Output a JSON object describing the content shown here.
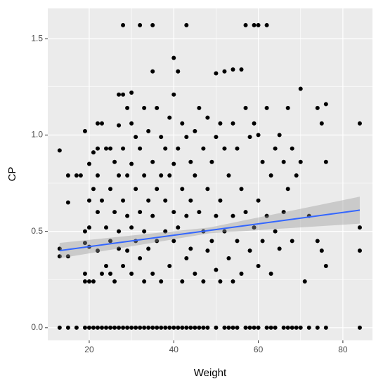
{
  "chart_data": {
    "type": "scatter",
    "xlabel": "Weight",
    "ylabel": "CP",
    "xlim": [
      10.2,
      87
    ],
    "ylim": [
      -0.066,
      1.657
    ],
    "xticks": [
      20,
      40,
      60,
      80
    ],
    "yticks": [
      {
        "value": 0,
        "label": "0.0"
      },
      {
        "value": 0.5,
        "label": "0.5"
      },
      {
        "value": 1,
        "label": "1.0"
      },
      {
        "value": 1.5,
        "label": "1.5"
      }
    ],
    "xminor": [
      30,
      50,
      70
    ],
    "yminor": [
      0.25,
      0.75,
      1.25
    ],
    "grid": true,
    "series": [
      {
        "color": "#000000",
        "x": [
          13,
          15,
          17,
          19,
          20,
          21,
          22,
          23,
          24,
          25,
          26,
          27,
          28,
          29,
          30,
          31,
          32,
          33,
          34,
          35,
          36,
          37,
          38,
          39,
          40,
          41,
          42,
          43,
          44,
          45,
          46,
          47,
          48,
          50,
          52,
          53,
          54,
          55,
          57,
          58,
          59,
          60,
          62,
          63,
          64,
          66,
          67,
          68,
          69,
          70,
          72,
          74,
          76,
          84,
          28,
          32,
          35,
          43,
          57,
          59,
          60,
          62,
          13,
          13,
          13,
          15,
          15,
          15,
          17,
          18,
          19,
          19,
          19,
          19,
          19,
          20,
          20,
          20,
          20,
          20,
          21,
          21,
          21,
          22,
          22,
          22,
          22,
          22,
          23,
          23,
          23,
          24,
          24,
          24,
          25,
          25,
          25,
          25,
          26,
          26,
          26,
          27,
          27,
          27,
          27,
          27,
          28,
          28,
          28,
          28,
          29,
          29,
          29,
          29,
          30,
          30,
          30,
          30,
          30,
          31,
          31,
          31,
          32,
          32,
          32,
          33,
          33,
          33,
          33,
          34,
          34,
          34,
          35,
          35,
          35,
          35,
          36,
          36,
          36,
          37,
          37,
          37,
          38,
          38,
          38,
          39,
          39,
          39,
          40,
          40,
          40,
          40,
          40,
          41,
          41,
          41,
          42,
          42,
          42,
          43,
          43,
          43,
          44,
          44,
          44,
          45,
          45,
          45,
          46,
          46,
          47,
          47,
          47,
          48,
          48,
          48,
          49,
          49,
          50,
          50,
          50,
          50,
          51,
          51,
          51,
          52,
          52,
          52,
          53,
          53,
          54,
          54,
          54,
          54,
          55,
          55,
          56,
          56,
          56,
          57,
          57,
          58,
          58,
          59,
          59,
          60,
          60,
          60,
          61,
          61,
          62,
          62,
          63,
          63,
          64,
          64,
          65,
          65,
          66,
          66,
          67,
          67,
          68,
          68,
          69,
          70,
          70,
          71,
          72,
          74,
          74,
          75,
          75,
          76,
          76,
          76,
          84,
          84,
          84
        ],
        "values": [
          0,
          0,
          0,
          0,
          0,
          0,
          0,
          0,
          0,
          0,
          0,
          0,
          0,
          0,
          0,
          0,
          0,
          0,
          0,
          0,
          0,
          0,
          0,
          0,
          0,
          0,
          0,
          0,
          0,
          0,
          0,
          0,
          0,
          0,
          0,
          0,
          0,
          0,
          0,
          0,
          0,
          0,
          0,
          0,
          0,
          0,
          0,
          0,
          0,
          0,
          0,
          0,
          0,
          0,
          1.57,
          1.57,
          1.57,
          1.57,
          1.57,
          1.57,
          1.57,
          1.57,
          0.92,
          0.41,
          0.37,
          0.65,
          0.79,
          0.37,
          0.79,
          0.79,
          1.02,
          0.5,
          0.44,
          0.28,
          0.24,
          0.85,
          0.66,
          0.52,
          0.42,
          0.24,
          0.91,
          0.72,
          0.24,
          1.06,
          0.93,
          0.79,
          0.6,
          0.4,
          1.06,
          0.66,
          0.28,
          0.93,
          0.52,
          0.32,
          0.93,
          0.72,
          0.45,
          0.28,
          0.86,
          0.6,
          0.24,
          1.21,
          1.05,
          0.79,
          0.5,
          0.41,
          1.21,
          0.93,
          0.66,
          0.32,
          1.14,
          0.79,
          0.58,
          0.4,
          1.22,
          1.06,
          0.85,
          0.52,
          0.28,
          0.99,
          0.72,
          0.45,
          0.93,
          0.6,
          0.36,
          1.14,
          0.79,
          0.5,
          0.24,
          1.02,
          0.66,
          0.41,
          1.33,
          0.86,
          0.58,
          0.28,
          1.14,
          0.72,
          0.45,
          0.99,
          0.79,
          0.24,
          0.93,
          0.66,
          0.5,
          1.09,
          0.79,
          0.32,
          1.4,
          1.21,
          0.85,
          0.6,
          0.45,
          1.33,
          0.93,
          0.52,
          1.06,
          0.72,
          0.24,
          0.99,
          0.58,
          0.36,
          0.86,
          0.66,
          0.41,
          1.02,
          0.79,
          0.28,
          1.14,
          0.6,
          0.93,
          0.5,
          0.24,
          1.09,
          0.72,
          0.4,
          0.86,
          0.45,
          1.32,
          0.99,
          0.58,
          0.3,
          1.06,
          0.66,
          0.24,
          1.33,
          0.93,
          0.5,
          0.79,
          0.36,
          1.34,
          1.06,
          0.58,
          0.24,
          0.93,
          0.45,
          1.34,
          0.72,
          0.28,
          1.14,
          0.6,
          0.99,
          0.4,
          1.06,
          0.52,
          1.0,
          0.66,
          0.32,
          0.86,
          0.45,
          1.14,
          0.58,
          0.79,
          0.28,
          0.93,
          0.5,
          1.0,
          0.41,
          0.86,
          0.6,
          1.14,
          0.72,
          0.93,
          0.45,
          0.79,
          1.24,
          0.86,
          0.24,
          0.58,
          1.14,
          0.45,
          1.06,
          0.4,
          1.16,
          0.86,
          0.32,
          1.06,
          0.52,
          0.4
        ]
      }
    ],
    "fit": {
      "color": "#3366ff",
      "band_color": "#999999",
      "x": [
        13,
        48.5,
        84
      ],
      "values": [
        0.4,
        0.505,
        0.61
      ],
      "lower": [
        0.36,
        0.49,
        0.54
      ],
      "upper": [
        0.44,
        0.52,
        0.68
      ]
    }
  }
}
